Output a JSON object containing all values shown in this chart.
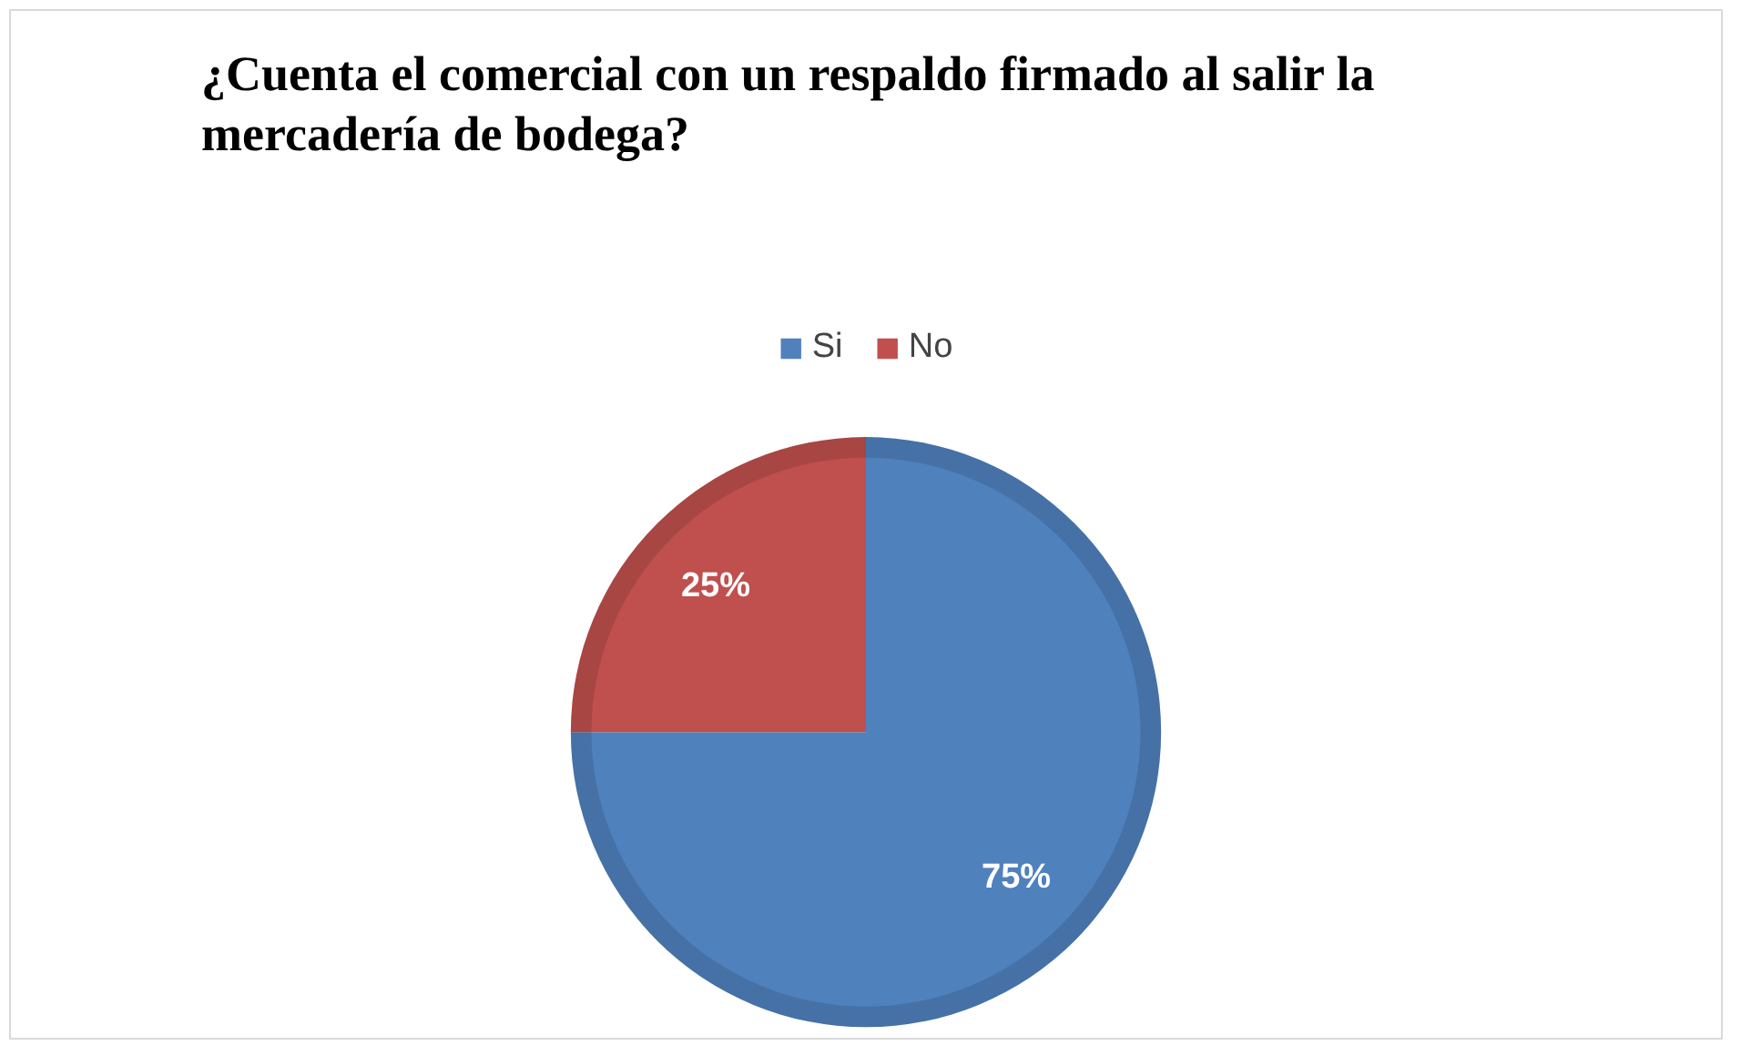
{
  "chart_data": {
    "type": "pie",
    "title": "¿Cuenta el comercial con un respaldo firmado al salir la mercadería de bodega?",
    "categories": [
      "Si",
      "No"
    ],
    "values": [
      75,
      25
    ],
    "colors": [
      "#4f81bd",
      "#c0504d"
    ],
    "value_labels": [
      "75%",
      "25%"
    ],
    "legend": "top"
  }
}
